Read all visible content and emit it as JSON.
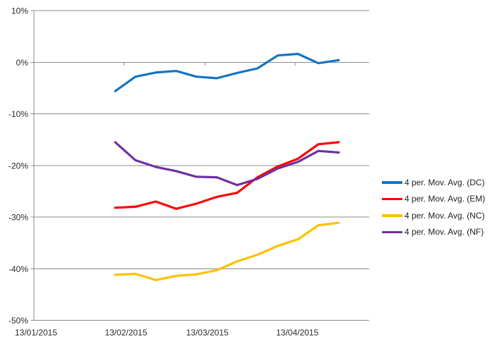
{
  "chart_data": {
    "type": "line",
    "title": "",
    "grid": "horizontal",
    "legend_position": "right",
    "y_axis": {
      "max": 10,
      "min": -50,
      "unit": "%",
      "ticks": [
        {
          "label": "10%",
          "value": 10
        },
        {
          "label": "0%",
          "value": 0
        },
        {
          "label": "-10%",
          "value": -10
        },
        {
          "label": "-20%",
          "value": -20
        },
        {
          "label": "-30%",
          "value": -30
        },
        {
          "label": "-40%",
          "value": -40
        },
        {
          "label": "-50%",
          "value": -50
        }
      ]
    },
    "x_axis": {
      "domain_days": 115.5,
      "axis_cross_value": 0,
      "ticks": [
        {
          "label": "13/01/2015",
          "day": 0
        },
        {
          "label": "13/02/2015",
          "day": 31
        },
        {
          "label": "13/03/2015",
          "day": 59
        },
        {
          "label": "13/04/2015",
          "day": 90
        }
      ]
    },
    "series": [
      {
        "id": "dc",
        "label": "4 per. Mov. Avg. (DC)",
        "color": "#1474C4",
        "start_day": 28,
        "step_days": 7,
        "values": [
          -5.6,
          -2.8,
          -2.0,
          -1.7,
          -2.8,
          -3.1,
          -2.1,
          -1.2,
          1.3,
          1.6,
          -0.2,
          0.4
        ]
      },
      {
        "id": "em",
        "label": "4 per. Mov. Avg. (EM)",
        "color": "#FE0000",
        "start_day": 28,
        "step_days": 7,
        "values": [
          -28.2,
          -28.0,
          -27.0,
          -28.4,
          -27.4,
          -26.1,
          -25.3,
          -22.3,
          -20.2,
          -18.7,
          -15.9,
          -15.5
        ]
      },
      {
        "id": "nc",
        "label": "4 per. Mov. Avg. (NC)",
        "color": "#FFC000",
        "start_day": 28,
        "step_days": 7,
        "values": [
          -41.2,
          -41.0,
          -42.2,
          -41.4,
          -41.1,
          -40.3,
          -38.6,
          -37.3,
          -35.6,
          -34.3,
          -31.6,
          -31.1
        ]
      },
      {
        "id": "nf",
        "label": "4 per. Mov. Avg. (NF)",
        "color": "#7030A0",
        "start_day": 28,
        "step_days": 7,
        "values": [
          -15.5,
          -19.0,
          -20.3,
          -21.1,
          -22.2,
          -22.3,
          -23.8,
          -22.6,
          -20.6,
          -19.3,
          -17.2,
          -17.5
        ]
      }
    ]
  }
}
